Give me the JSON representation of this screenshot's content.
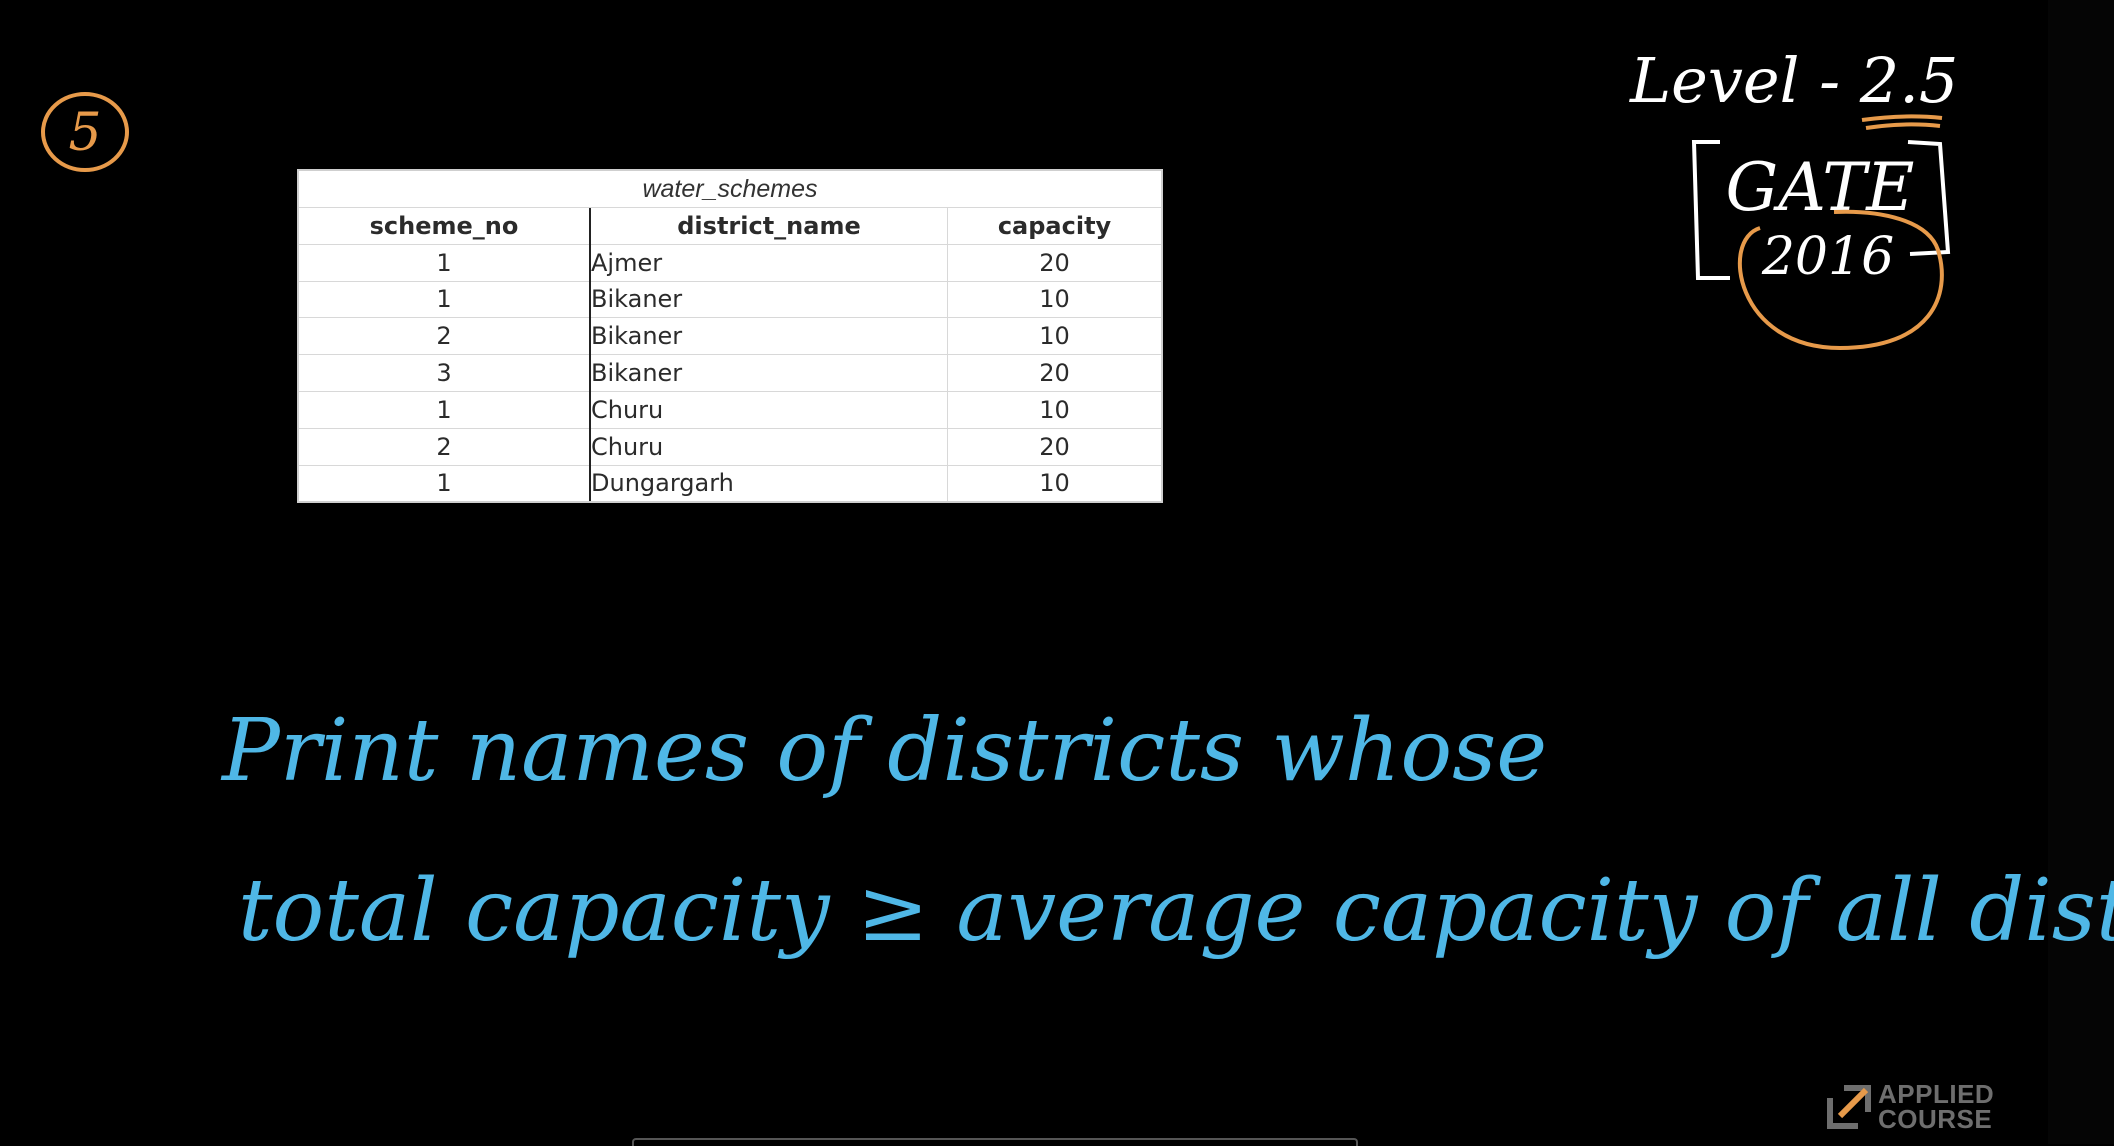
{
  "table": {
    "caption": "water_schemes",
    "headers": [
      "scheme_no",
      "district_name",
      "capacity"
    ],
    "rows": [
      [
        "1",
        "Ajmer",
        "20"
      ],
      [
        "1",
        "Bikaner",
        "10"
      ],
      [
        "2",
        "Bikaner",
        "10"
      ],
      [
        "3",
        "Bikaner",
        "20"
      ],
      [
        "1",
        "Churu",
        "10"
      ],
      [
        "2",
        "Churu",
        "20"
      ],
      [
        "1",
        "Dungargarh",
        "10"
      ]
    ]
  },
  "annotations": {
    "question_number": "5",
    "level": "Level - 2.5",
    "exam": "GATE",
    "year": "2016",
    "line1": "Print names of districts whose",
    "line2": "total capacity ≥ average capacity of all districts"
  },
  "logo": {
    "line1": "APPLIED",
    "line2": "COURSE"
  },
  "colors": {
    "ink_blue": "#4fb7e6",
    "ink_orange": "#e79a4a",
    "ink_white": "#ffffff",
    "background": "#000000"
  }
}
